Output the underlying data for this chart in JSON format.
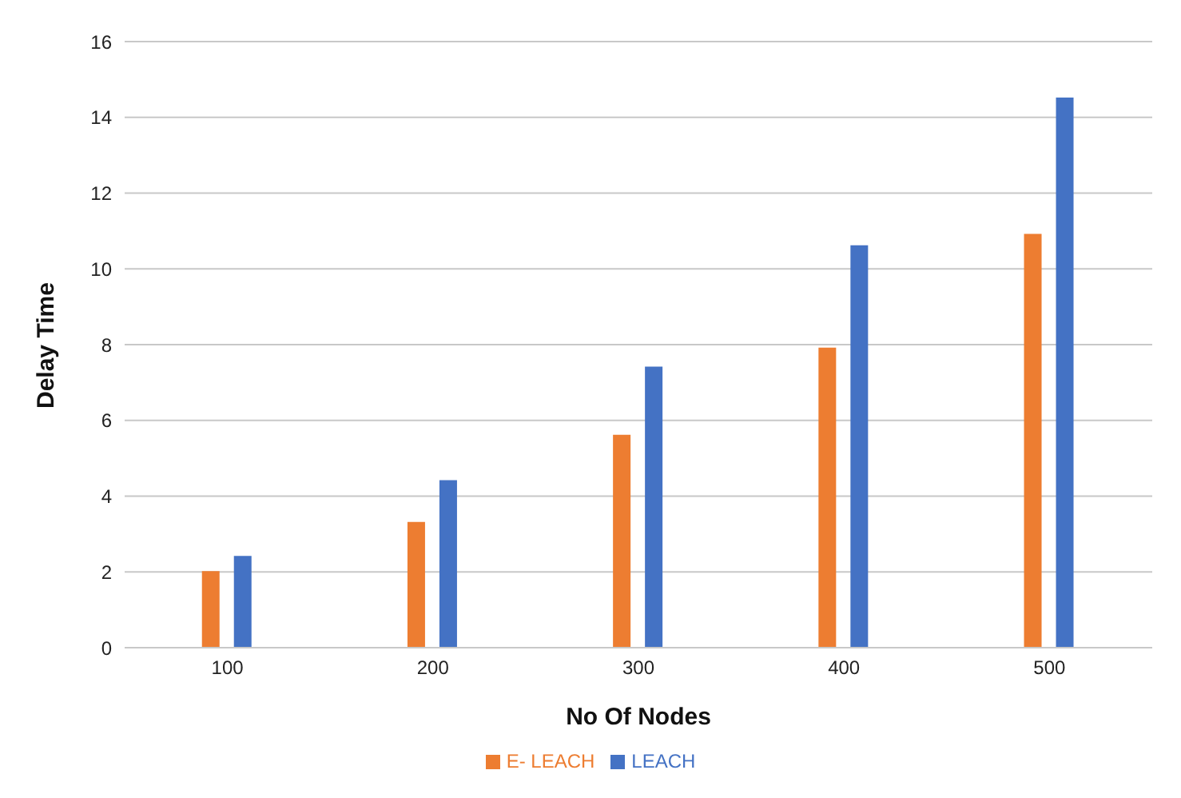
{
  "chart_data": {
    "type": "bar",
    "xlabel": "No Of Nodes",
    "ylabel": "Delay Time",
    "categories": [
      "100",
      "200",
      "300",
      "400",
      "500"
    ],
    "series": [
      {
        "name": "E- LEACH",
        "color": "#ed7d31",
        "values": [
          2.0,
          3.3,
          5.6,
          7.9,
          10.9
        ]
      },
      {
        "name": "LEACH",
        "color": "#4472c4",
        "values": [
          2.4,
          4.4,
          7.4,
          10.6,
          14.5
        ]
      }
    ],
    "ylim": [
      0,
      16
    ],
    "yticks": [
      0,
      2,
      4,
      6,
      8,
      10,
      12,
      14,
      16
    ],
    "grid": "y",
    "legend": "bottom"
  }
}
